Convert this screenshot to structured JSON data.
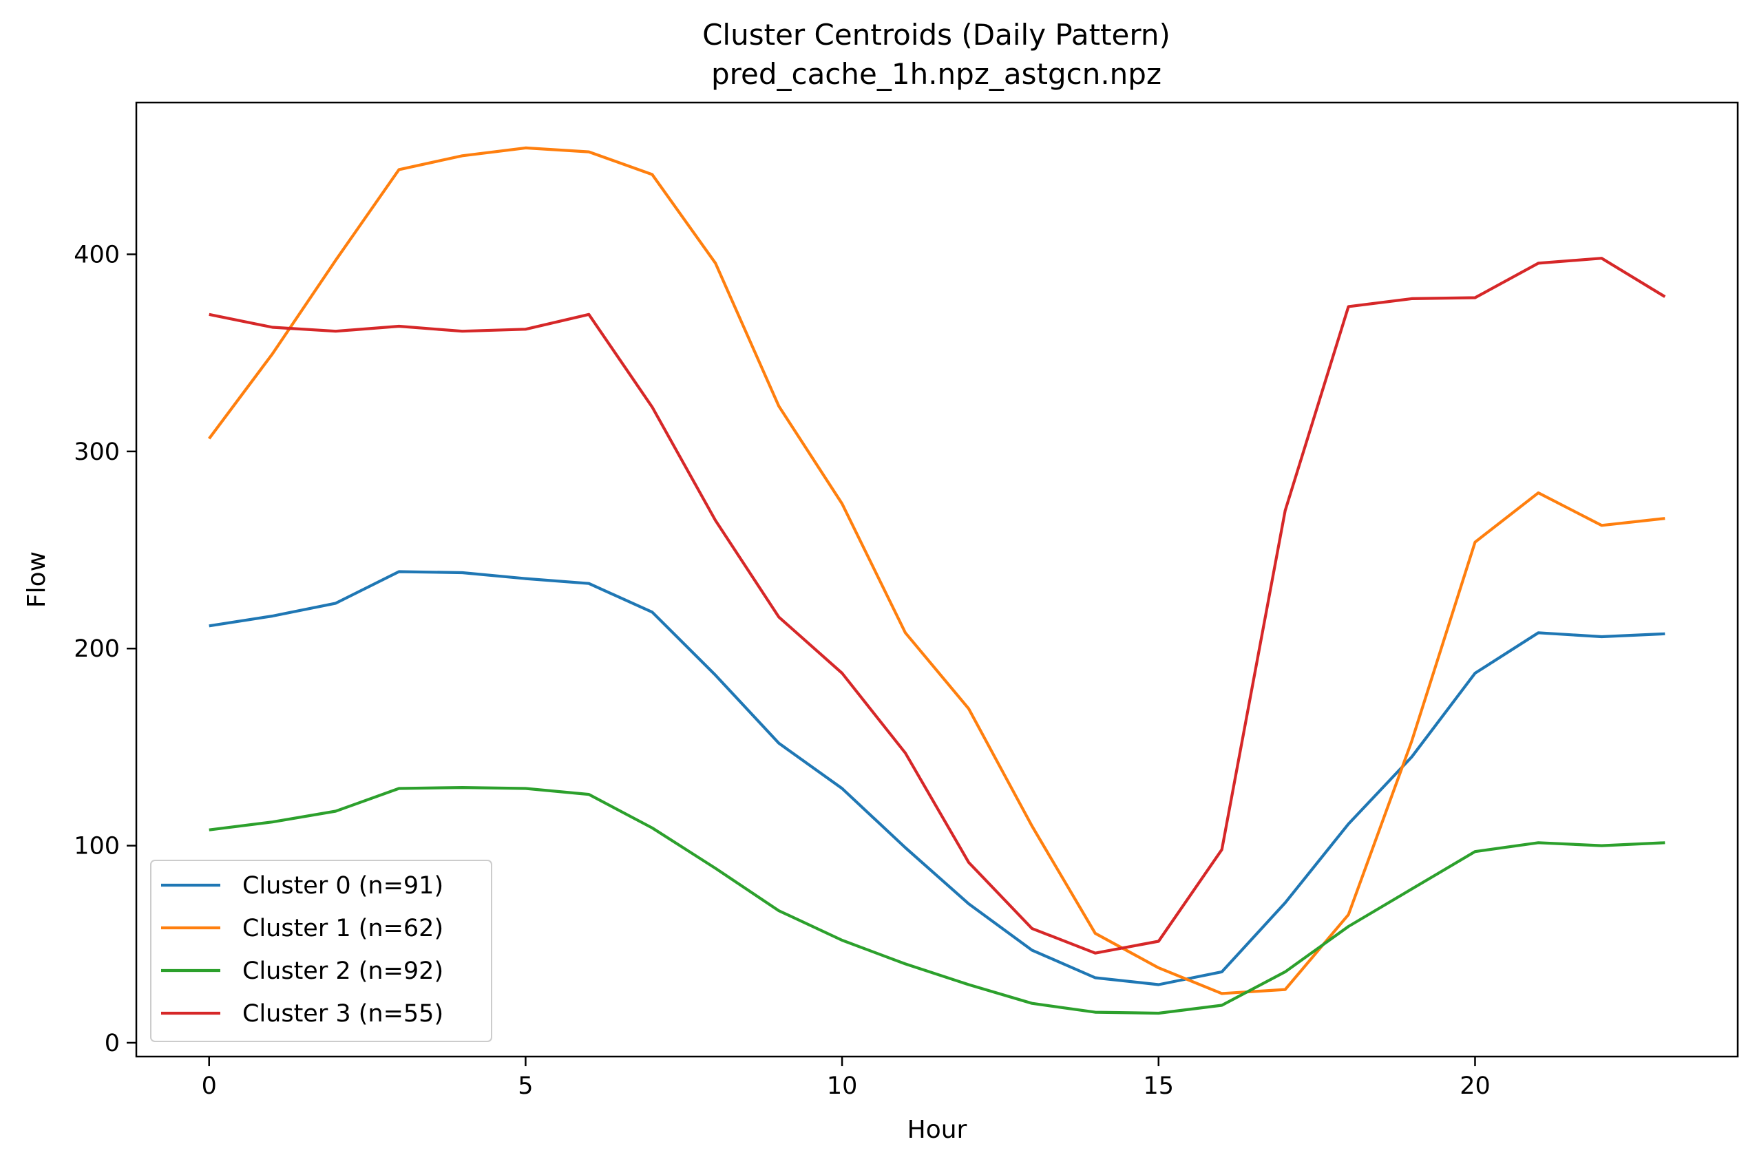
{
  "chart_data": {
    "type": "line",
    "title": "Cluster Centroids (Daily Pattern)",
    "subtitle": "pred_cache_1h.npz_astgcn.npz",
    "xlabel": "Hour",
    "ylabel": "Flow",
    "xlim": [
      -1.15,
      24.15
    ],
    "ylim": [
      -7,
      477
    ],
    "xticks": [
      0,
      5,
      10,
      15,
      20
    ],
    "yticks": [
      0,
      100,
      200,
      300,
      400
    ],
    "grid": false,
    "legend_position": "lower-left",
    "x": [
      0,
      1,
      2,
      3,
      4,
      5,
      6,
      7,
      8,
      9,
      10,
      11,
      12,
      13,
      14,
      15,
      16,
      17,
      18,
      19,
      20,
      21,
      22,
      23
    ],
    "series": [
      {
        "name": "Cluster 0 (n=91)",
        "color": "#1f77b4",
        "values": [
          211.5,
          216.5,
          223,
          239,
          238.5,
          235.5,
          233,
          218.5,
          186.5,
          152,
          129,
          99,
          70.5,
          47,
          33,
          29.5,
          36,
          71,
          111,
          145,
          187.5,
          208,
          206,
          207.5
        ]
      },
      {
        "name": "Cluster 1 (n=62)",
        "color": "#ff7f0e",
        "values": [
          306.5,
          349.5,
          397,
          443,
          450,
          454,
          452,
          440.5,
          395.5,
          323,
          273.5,
          208,
          169.5,
          110,
          55.5,
          38,
          25,
          27,
          65,
          153,
          254,
          279,
          262.5,
          266
        ]
      },
      {
        "name": "Cluster 2 (n=92)",
        "color": "#2ca02c",
        "values": [
          108,
          112,
          117.5,
          129,
          129.5,
          129,
          126,
          109,
          88.5,
          67,
          52,
          40,
          29.5,
          20,
          15.5,
          15,
          19,
          36,
          59,
          78,
          97,
          101.5,
          100,
          101.5
        ]
      },
      {
        "name": "Cluster 3 (n=55)",
        "color": "#d62728",
        "values": [
          369.5,
          363,
          361,
          363.5,
          361,
          362,
          369.5,
          322.5,
          265,
          216,
          187.5,
          147,
          91.5,
          58,
          45.5,
          51.5,
          98,
          270,
          373.5,
          377.5,
          378,
          395.5,
          398,
          378.5
        ]
      }
    ]
  }
}
